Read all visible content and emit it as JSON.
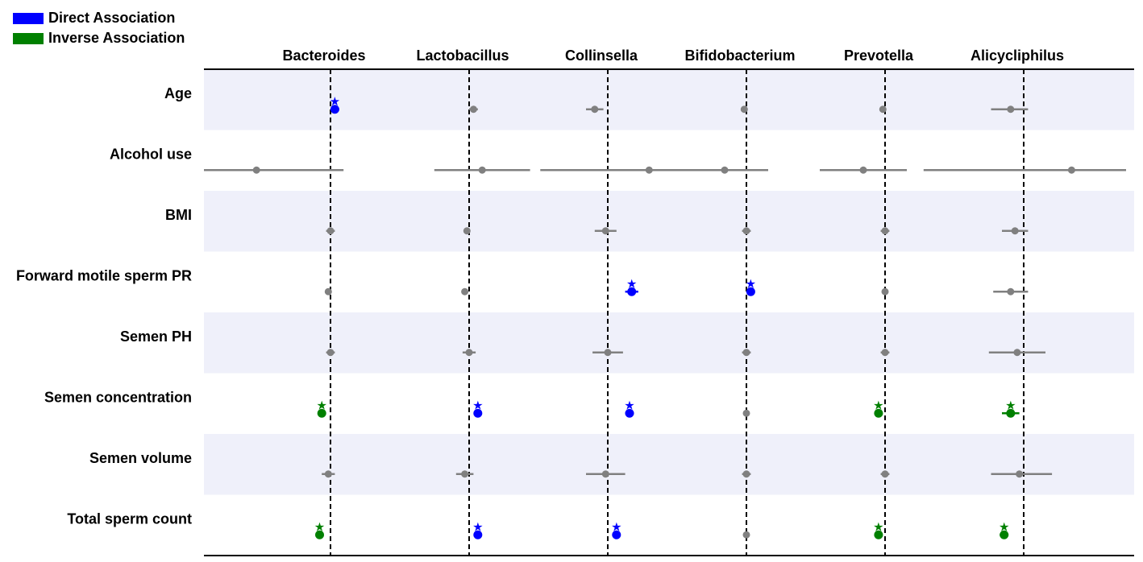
{
  "legend": [
    {
      "label": "Direct Association",
      "color": "#0000ff"
    },
    {
      "label": "Inverse Association",
      "color": "#008000"
    }
  ],
  "chart_data": {
    "type": "forest",
    "grid": false,
    "legend_position": "top-left",
    "colors": {
      "direct": "#0000ff",
      "inverse": "#008000",
      "ns": "#808080",
      "stripe": "#eff0fa"
    },
    "columns": [
      "Bacteroides",
      "Lactobacillus",
      "Collinsella",
      "Bifidobacterium",
      "Prevotella",
      "Alicycliphilus"
    ],
    "rows": [
      "Age",
      "Alcohol use",
      "BMI",
      "Forward motile sperm PR",
      "Semen PH",
      "Semen concentration",
      "Semen volume",
      "Total sperm count"
    ],
    "cells": [
      [
        {
          "est": 0.02,
          "lo": 0.0,
          "hi": 0.04,
          "sig": "direct"
        },
        {
          "est": 0.02,
          "lo": 0.0,
          "hi": 0.04,
          "sig": "ns"
        },
        {
          "est": -0.06,
          "lo": -0.1,
          "hi": -0.02,
          "sig": "ns"
        },
        {
          "est": -0.01,
          "lo": -0.02,
          "hi": 0.0,
          "sig": "ns"
        },
        {
          "est": -0.01,
          "lo": -0.02,
          "hi": 0.0,
          "sig": "ns"
        },
        {
          "est": -0.06,
          "lo": -0.15,
          "hi": 0.02,
          "sig": "ns"
        }
      ],
      [
        {
          "est": -0.34,
          "lo": -0.75,
          "hi": 0.06,
          "sig": "ns"
        },
        {
          "est": 0.06,
          "lo": -0.16,
          "hi": 0.28,
          "sig": "ns"
        },
        {
          "est": 0.19,
          "lo": -0.31,
          "hi": 0.7,
          "sig": "ns"
        },
        {
          "est": -0.1,
          "lo": -0.3,
          "hi": 0.1,
          "sig": "ns"
        },
        {
          "est": -0.1,
          "lo": -0.3,
          "hi": 0.1,
          "sig": "ns"
        },
        {
          "est": 0.22,
          "lo": -0.46,
          "hi": 0.9,
          "sig": "ns"
        }
      ],
      [
        {
          "est": 0.0,
          "lo": -0.02,
          "hi": 0.02,
          "sig": "ns"
        },
        {
          "est": -0.01,
          "lo": -0.02,
          "hi": 0.0,
          "sig": "ns"
        },
        {
          "est": -0.01,
          "lo": -0.06,
          "hi": 0.04,
          "sig": "ns"
        },
        {
          "est": 0.0,
          "lo": -0.02,
          "hi": 0.02,
          "sig": "ns"
        },
        {
          "est": 0.0,
          "lo": -0.02,
          "hi": 0.02,
          "sig": "ns"
        },
        {
          "est": -0.04,
          "lo": -0.1,
          "hi": 0.02,
          "sig": "ns"
        }
      ],
      [
        {
          "est": -0.01,
          "lo": -0.02,
          "hi": 0.0,
          "sig": "ns"
        },
        {
          "est": -0.02,
          "lo": -0.03,
          "hi": -0.01,
          "sig": "ns"
        },
        {
          "est": 0.11,
          "lo": 0.08,
          "hi": 0.14,
          "sig": "direct"
        },
        {
          "est": 0.02,
          "lo": 0.01,
          "hi": 0.03,
          "sig": "direct"
        },
        {
          "est": 0.0,
          "lo": -0.01,
          "hi": 0.01,
          "sig": "ns"
        },
        {
          "est": -0.06,
          "lo": -0.14,
          "hi": 0.02,
          "sig": "ns"
        }
      ],
      [
        {
          "est": 0.0,
          "lo": -0.02,
          "hi": 0.02,
          "sig": "ns"
        },
        {
          "est": 0.0,
          "lo": -0.03,
          "hi": 0.03,
          "sig": "ns"
        },
        {
          "est": 0.0,
          "lo": -0.07,
          "hi": 0.07,
          "sig": "ns"
        },
        {
          "est": 0.0,
          "lo": -0.02,
          "hi": 0.02,
          "sig": "ns"
        },
        {
          "est": 0.0,
          "lo": -0.02,
          "hi": 0.02,
          "sig": "ns"
        },
        {
          "est": -0.03,
          "lo": -0.16,
          "hi": 0.1,
          "sig": "ns"
        }
      ],
      [
        {
          "est": -0.04,
          "lo": -0.05,
          "hi": -0.03,
          "sig": "inverse"
        },
        {
          "est": 0.04,
          "lo": 0.03,
          "hi": 0.05,
          "sig": "direct"
        },
        {
          "est": 0.1,
          "lo": 0.08,
          "hi": 0.12,
          "sig": "direct"
        },
        {
          "est": 0.0,
          "lo": -0.01,
          "hi": 0.01,
          "sig": "ns"
        },
        {
          "est": -0.03,
          "lo": -0.04,
          "hi": -0.02,
          "sig": "inverse"
        },
        {
          "est": -0.06,
          "lo": -0.1,
          "hi": -0.02,
          "sig": "inverse"
        }
      ],
      [
        {
          "est": -0.01,
          "lo": -0.04,
          "hi": 0.02,
          "sig": "ns"
        },
        {
          "est": -0.02,
          "lo": -0.06,
          "hi": 0.02,
          "sig": "ns"
        },
        {
          "est": -0.01,
          "lo": -0.1,
          "hi": 0.08,
          "sig": "ns"
        },
        {
          "est": 0.0,
          "lo": -0.02,
          "hi": 0.02,
          "sig": "ns"
        },
        {
          "est": 0.0,
          "lo": -0.02,
          "hi": 0.02,
          "sig": "ns"
        },
        {
          "est": -0.02,
          "lo": -0.15,
          "hi": 0.13,
          "sig": "ns"
        }
      ],
      [
        {
          "est": -0.05,
          "lo": -0.06,
          "hi": -0.04,
          "sig": "inverse"
        },
        {
          "est": 0.04,
          "lo": 0.03,
          "hi": 0.05,
          "sig": "direct"
        },
        {
          "est": 0.04,
          "lo": 0.03,
          "hi": 0.05,
          "sig": "direct"
        },
        {
          "est": 0.0,
          "lo": -0.01,
          "hi": 0.01,
          "sig": "ns"
        },
        {
          "est": -0.03,
          "lo": -0.04,
          "hi": -0.02,
          "sig": "inverse"
        },
        {
          "est": -0.09,
          "lo": -0.11,
          "hi": -0.07,
          "sig": "inverse"
        }
      ]
    ]
  }
}
